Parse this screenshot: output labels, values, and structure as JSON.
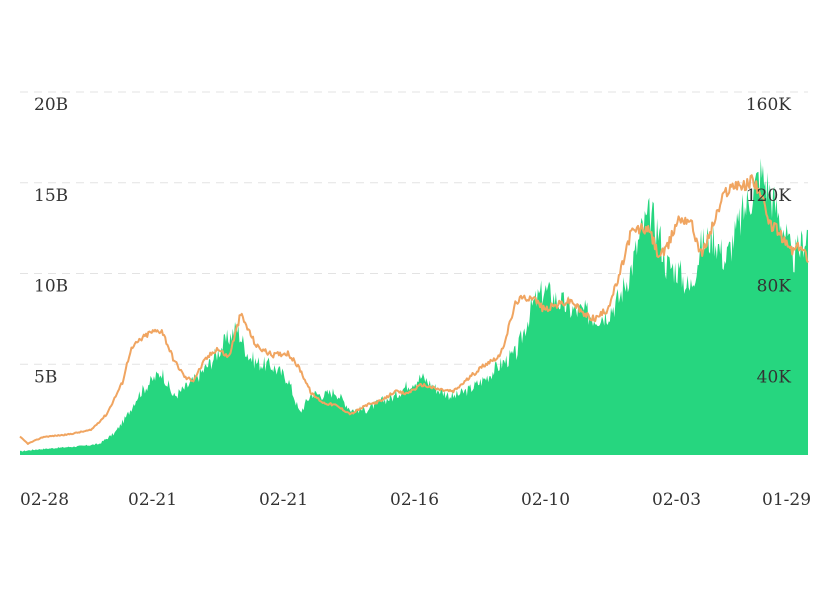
{
  "chart_data": {
    "type": "area",
    "title": "",
    "xlabel": "",
    "ylabel": "",
    "grid": true,
    "x_tick_labels": [
      "02-28",
      "02-21",
      "02-21",
      "02-16",
      "02-10",
      "02-03",
      "01-29"
    ],
    "y_left": {
      "ticks": [
        5,
        10,
        15,
        20
      ],
      "tick_labels": [
        "5B",
        "10B",
        "15B",
        "20B"
      ],
      "range": [
        0,
        20
      ],
      "unit": "B"
    },
    "y_right": {
      "ticks": [
        40,
        80,
        120,
        160
      ],
      "tick_labels": [
        "40K",
        "80K",
        "120K",
        "160K"
      ],
      "range": [
        0,
        160
      ],
      "unit": "K"
    },
    "series": [
      {
        "type": "area",
        "axis": "left",
        "color": "#26d67f",
        "x": [
          0,
          0.02,
          0.05,
          0.08,
          0.1,
          0.12,
          0.135,
          0.15,
          0.165,
          0.18,
          0.195,
          0.21,
          0.225,
          0.24,
          0.26,
          0.275,
          0.29,
          0.3,
          0.32,
          0.34,
          0.355,
          0.37,
          0.385,
          0.4,
          0.42,
          0.44,
          0.46,
          0.475,
          0.49,
          0.51,
          0.53,
          0.55,
          0.57,
          0.59,
          0.61,
          0.63,
          0.65,
          0.665,
          0.68,
          0.7,
          0.715,
          0.73,
          0.745,
          0.76,
          0.775,
          0.79,
          0.8,
          0.81,
          0.82,
          0.835,
          0.85,
          0.865,
          0.88,
          0.895,
          0.91,
          0.92,
          0.93,
          0.94,
          0.95,
          0.96,
          0.97,
          0.98,
          0.99,
          1.0
        ],
        "values": [
          0.2,
          0.3,
          0.4,
          0.5,
          0.6,
          1.2,
          2.1,
          3.3,
          4.0,
          4.6,
          3.2,
          3.7,
          4.3,
          5.0,
          6.2,
          7.0,
          5.5,
          5.1,
          4.9,
          4.2,
          2.3,
          3.4,
          3.3,
          3.5,
          2.5,
          2.5,
          3.0,
          3.2,
          3.8,
          4.3,
          3.6,
          3.2,
          3.6,
          4.2,
          5.0,
          5.6,
          8.2,
          9.1,
          8.6,
          8.0,
          7.9,
          7.6,
          7.8,
          8.6,
          10.2,
          12.5,
          13.2,
          12.4,
          10.5,
          10.2,
          9.1,
          11.6,
          12.1,
          10.7,
          12.4,
          13.6,
          14.5,
          15.5,
          14.7,
          13.5,
          12.4,
          10.7,
          11.4,
          12.4
        ]
      },
      {
        "type": "line",
        "axis": "right",
        "color": "#f0a561",
        "x": [
          0,
          0.01,
          0.03,
          0.06,
          0.09,
          0.11,
          0.13,
          0.14,
          0.15,
          0.165,
          0.18,
          0.195,
          0.21,
          0.22,
          0.235,
          0.25,
          0.265,
          0.28,
          0.3,
          0.32,
          0.34,
          0.355,
          0.37,
          0.385,
          0.4,
          0.42,
          0.44,
          0.46,
          0.475,
          0.49,
          0.51,
          0.53,
          0.55,
          0.57,
          0.59,
          0.61,
          0.63,
          0.65,
          0.665,
          0.68,
          0.7,
          0.715,
          0.73,
          0.745,
          0.76,
          0.775,
          0.79,
          0.8,
          0.81,
          0.82,
          0.835,
          0.85,
          0.865,
          0.88,
          0.895,
          0.91,
          0.92,
          0.93,
          0.94,
          0.95,
          0.96,
          0.97,
          0.98,
          0.99,
          1.0
        ],
        "values": [
          8,
          5,
          8,
          9,
          11,
          18,
          32,
          46,
          50,
          54,
          55,
          42,
          34,
          33,
          42,
          47,
          43,
          62,
          48,
          44,
          45,
          38,
          27,
          23,
          22,
          18,
          22,
          24,
          28,
          27,
          31,
          29,
          28,
          34,
          40,
          44,
          68,
          70,
          64,
          66,
          68,
          62,
          60,
          64,
          78,
          98,
          100,
          98,
          88,
          90,
          104,
          104,
          88,
          102,
          116,
          120,
          118,
          122,
          115,
          102,
          100,
          94,
          90,
          92,
          87
        ]
      }
    ]
  }
}
